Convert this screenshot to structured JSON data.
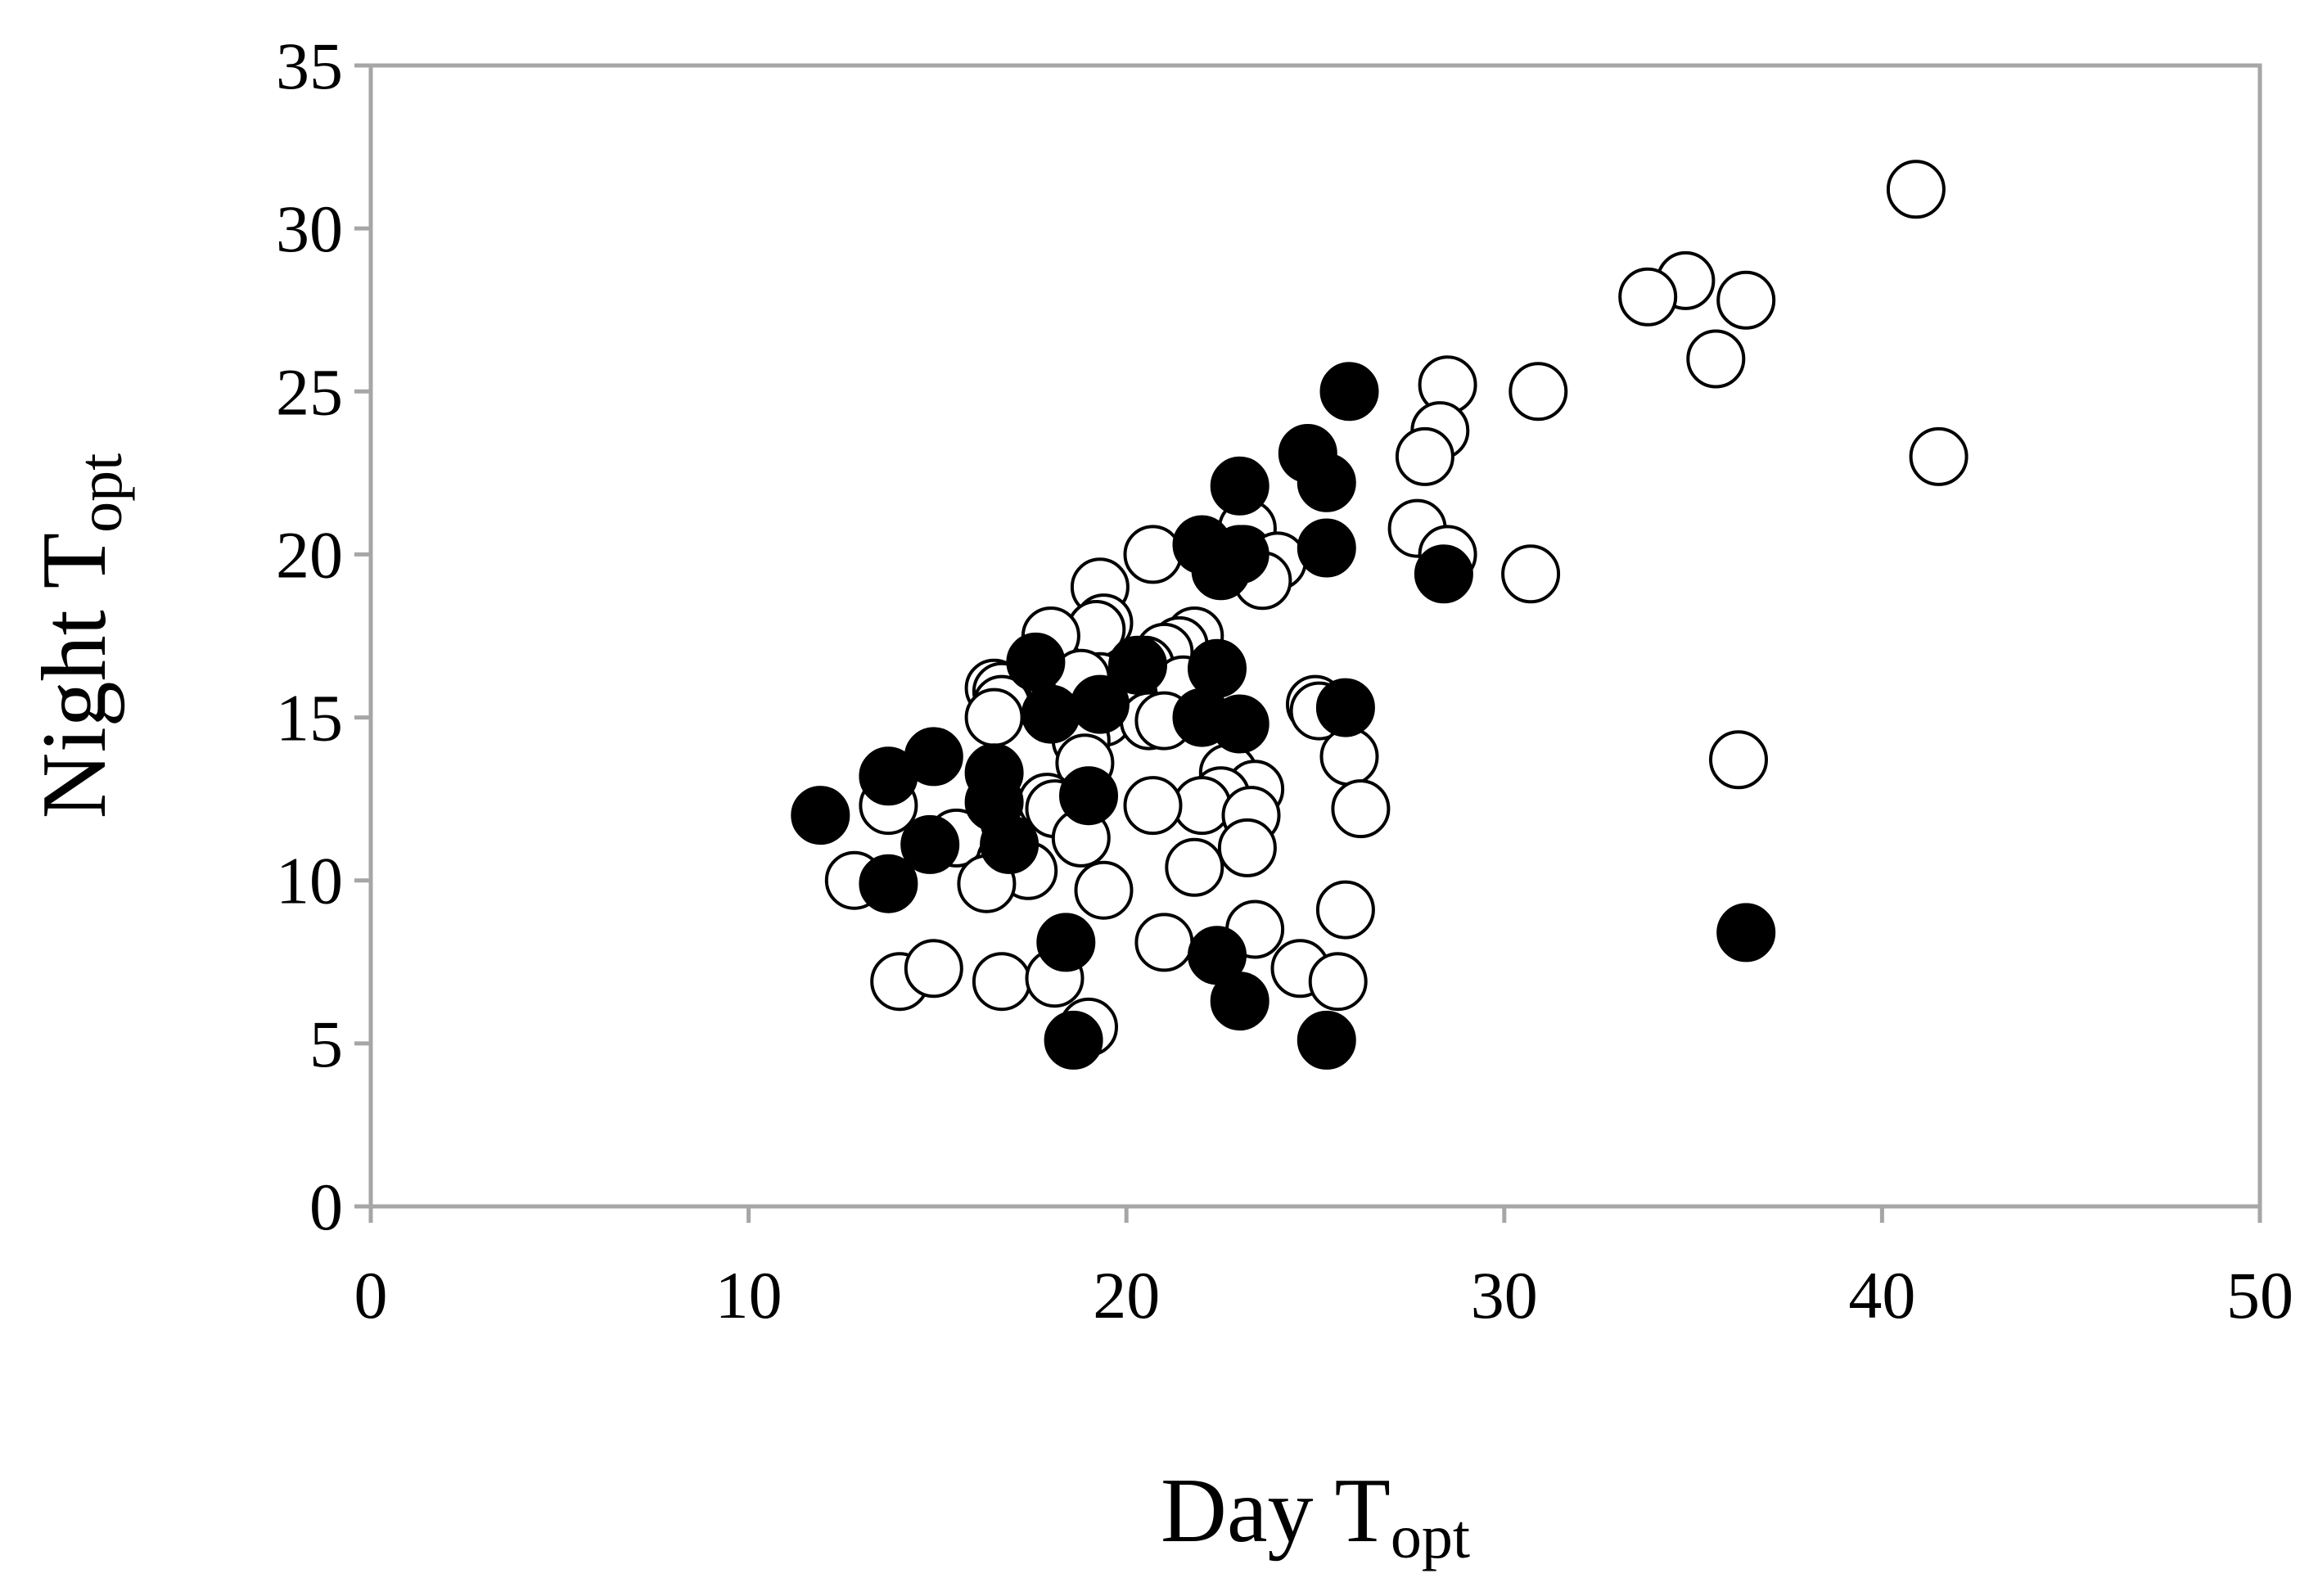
{
  "chart_data": {
    "type": "scatter",
    "title": "",
    "xlabel": {
      "main": "Day T",
      "sub": "opt"
    },
    "ylabel": {
      "main": "Night T",
      "sub": "opt"
    },
    "xlim": [
      0,
      50
    ],
    "ylim": [
      0,
      35
    ],
    "x_ticks": [
      0,
      10,
      20,
      30,
      40,
      50
    ],
    "y_ticks": [
      0,
      5,
      10,
      15,
      20,
      25,
      30,
      35
    ],
    "grid": false,
    "colors": {
      "axis": "#a6a6a6",
      "marker_edge": "#000000",
      "filled_marker": "#000000",
      "open_marker": "#ffffff"
    },
    "series": [
      {
        "marker": "open-circle",
        "points": [
          [
            40.9,
            31.2
          ],
          [
            34.8,
            28.4
          ],
          [
            33.8,
            27.9
          ],
          [
            36.4,
            27.8
          ],
          [
            35.6,
            26.0
          ],
          [
            41.5,
            23.0
          ],
          [
            28.5,
            25.2
          ],
          [
            30.9,
            25.0
          ],
          [
            28.3,
            23.8
          ],
          [
            27.9,
            23.0
          ],
          [
            27.7,
            20.8
          ],
          [
            28.5,
            20.0
          ],
          [
            30.7,
            19.4
          ],
          [
            36.2,
            13.7
          ],
          [
            23.2,
            20.8
          ],
          [
            23.1,
            20.0
          ],
          [
            24.0,
            19.8
          ],
          [
            23.6,
            19.2
          ],
          [
            20.7,
            20.0
          ],
          [
            19.3,
            19.0
          ],
          [
            19.4,
            17.9
          ],
          [
            19.2,
            17.7
          ],
          [
            18.0,
            17.5
          ],
          [
            21.8,
            17.5
          ],
          [
            21.4,
            17.2
          ],
          [
            21.0,
            17.0
          ],
          [
            20.5,
            16.6
          ],
          [
            21.5,
            16.0
          ],
          [
            19.3,
            16.1
          ],
          [
            18.8,
            16.2
          ],
          [
            19.4,
            15.0
          ],
          [
            20.6,
            14.9
          ],
          [
            21.0,
            14.9
          ],
          [
            16.5,
            15.9
          ],
          [
            16.7,
            15.8
          ],
          [
            16.7,
            15.4
          ],
          [
            16.5,
            15.0
          ],
          [
            25.0,
            15.4
          ],
          [
            25.1,
            15.2
          ],
          [
            25.9,
            13.8
          ],
          [
            26.2,
            12.2
          ],
          [
            25.8,
            9.1
          ],
          [
            18.8,
            14.3
          ],
          [
            18.9,
            13.6
          ],
          [
            22.7,
            13.3
          ],
          [
            23.4,
            12.8
          ],
          [
            22.5,
            12.6
          ],
          [
            22.0,
            12.3
          ],
          [
            23.3,
            12.0
          ],
          [
            23.2,
            11.0
          ],
          [
            20.7,
            12.3
          ],
          [
            17.9,
            12.4
          ],
          [
            18.1,
            12.2
          ],
          [
            18.8,
            11.3
          ],
          [
            21.8,
            10.4
          ],
          [
            19.4,
            9.7
          ],
          [
            13.7,
            12.3
          ],
          [
            15.5,
            11.3
          ],
          [
            16.8,
            10.6
          ],
          [
            17.4,
            10.3
          ],
          [
            16.3,
            9.9
          ],
          [
            12.8,
            10.0
          ],
          [
            21.0,
            8.1
          ],
          [
            23.4,
            8.5
          ],
          [
            24.6,
            7.3
          ],
          [
            25.6,
            6.9
          ],
          [
            14.0,
            6.9
          ],
          [
            14.9,
            7.3
          ],
          [
            16.7,
            6.9
          ],
          [
            18.1,
            7.0
          ],
          [
            19.0,
            5.5
          ]
        ]
      },
      {
        "marker": "filled-circle",
        "points": [
          [
            25.9,
            25.0
          ],
          [
            24.8,
            23.1
          ],
          [
            25.3,
            22.2
          ],
          [
            23.0,
            22.1
          ],
          [
            25.3,
            20.2
          ],
          [
            22.0,
            20.3
          ],
          [
            22.5,
            19.5
          ],
          [
            23.0,
            20.0
          ],
          [
            28.4,
            19.4
          ],
          [
            20.3,
            16.6
          ],
          [
            22.4,
            16.5
          ],
          [
            17.6,
            16.7
          ],
          [
            18.0,
            15.1
          ],
          [
            19.3,
            15.4
          ],
          [
            22.0,
            15.0
          ],
          [
            23.0,
            14.8
          ],
          [
            25.8,
            15.3
          ],
          [
            13.7,
            13.2
          ],
          [
            14.9,
            13.8
          ],
          [
            16.5,
            13.3
          ],
          [
            16.5,
            12.4
          ],
          [
            19.0,
            12.6
          ],
          [
            11.9,
            12.0
          ],
          [
            14.8,
            11.1
          ],
          [
            16.9,
            11.1
          ],
          [
            13.7,
            9.9
          ],
          [
            18.4,
            8.1
          ],
          [
            22.4,
            7.7
          ],
          [
            23.0,
            6.3
          ],
          [
            18.6,
            5.1
          ],
          [
            25.3,
            5.1
          ],
          [
            36.4,
            8.4
          ]
        ]
      }
    ]
  }
}
